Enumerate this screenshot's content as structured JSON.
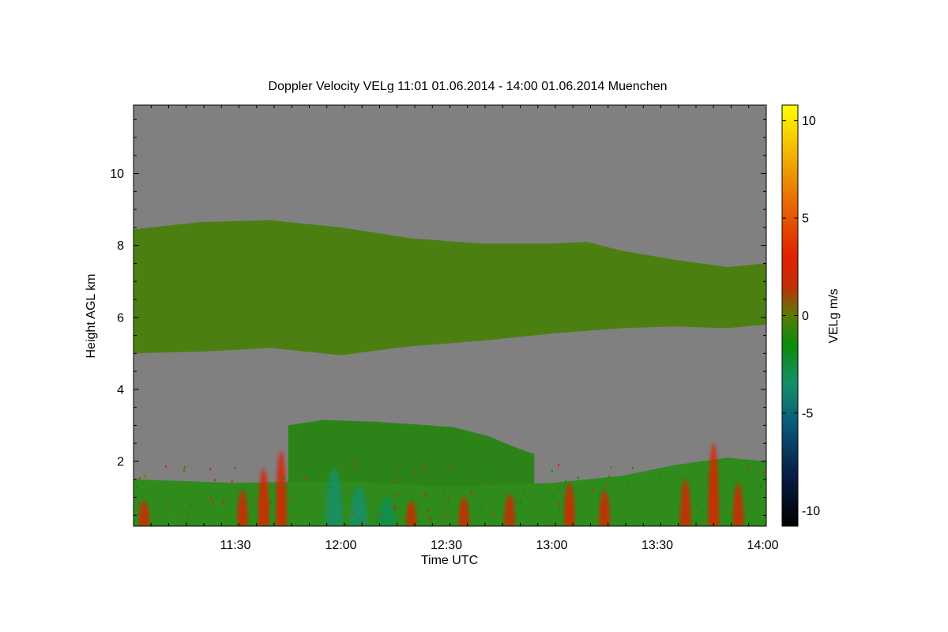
{
  "chart_data": {
    "type": "heatmap",
    "title": "Doppler Velocity VELg   11:01 01.06.2014 - 14:00 01.06.2014 Muenchen",
    "xlabel": "Time UTC",
    "ylabel": "Height AGL km",
    "colorbar_label": "VELg m/s",
    "x_ticks": [
      "11:30",
      "12:00",
      "12:30",
      "13:00",
      "13:30",
      "14:00"
    ],
    "x_tick_values_min": [
      690,
      720,
      750,
      780,
      810,
      840
    ],
    "xlim_min": [
      661,
      841
    ],
    "y_ticks": [
      2,
      4,
      6,
      8,
      10
    ],
    "ylim": [
      0.2,
      11.9
    ],
    "colorbar_ticks": [
      -10,
      -5,
      0,
      5,
      10
    ],
    "clim": [
      -10.8,
      10.8
    ],
    "background_color": "#808080",
    "colormap": [
      {
        "v": -10.8,
        "c": "#000000"
      },
      {
        "v": -8,
        "c": "#08204a"
      },
      {
        "v": -5.5,
        "c": "#0a5a78"
      },
      {
        "v": -3.5,
        "c": "#13906a"
      },
      {
        "v": -1.5,
        "c": "#0a8c0a"
      },
      {
        "v": 0,
        "c": "#5a7a08"
      },
      {
        "v": 1.5,
        "c": "#c03008"
      },
      {
        "v": 3,
        "c": "#e02000"
      },
      {
        "v": 6,
        "c": "#e87000"
      },
      {
        "v": 9,
        "c": "#f6c800"
      },
      {
        "v": 10.8,
        "c": "#ffff00"
      }
    ],
    "regions": [
      {
        "name": "upper cloud layer",
        "velocity": -1,
        "color": "#4c7f12",
        "top": [
          [
            661,
            8.45
          ],
          [
            680,
            8.65
          ],
          [
            700,
            8.7
          ],
          [
            720,
            8.5
          ],
          [
            740,
            8.2
          ],
          [
            760,
            8.05
          ],
          [
            780,
            8.05
          ],
          [
            790,
            8.1
          ],
          [
            800,
            7.85
          ],
          [
            815,
            7.6
          ],
          [
            830,
            7.4
          ],
          [
            841,
            7.5
          ]
        ],
        "bottom": [
          [
            661,
            5.0
          ],
          [
            680,
            5.05
          ],
          [
            700,
            5.15
          ],
          [
            720,
            4.95
          ],
          [
            740,
            5.2
          ],
          [
            760,
            5.35
          ],
          [
            780,
            5.55
          ],
          [
            800,
            5.7
          ],
          [
            815,
            5.75
          ],
          [
            830,
            5.7
          ],
          [
            841,
            5.8
          ]
        ]
      },
      {
        "name": "mid cloud",
        "velocity": -1.5,
        "color": "#2c8418",
        "top": [
          [
            705,
            3.0
          ],
          [
            715,
            3.15
          ],
          [
            730,
            3.1
          ],
          [
            745,
            3.0
          ],
          [
            752,
            2.95
          ],
          [
            758,
            2.8
          ],
          [
            762,
            2.7
          ],
          [
            768,
            2.45
          ],
          [
            775,
            2.2
          ]
        ],
        "bottom": [
          [
            705,
            0.2
          ],
          [
            775,
            0.2
          ]
        ]
      },
      {
        "name": "boundary layer",
        "velocity": -1.5,
        "color": "#2f8b1c",
        "top": [
          [
            661,
            1.5
          ],
          [
            690,
            1.4
          ],
          [
            720,
            1.45
          ],
          [
            750,
            1.3
          ],
          [
            780,
            1.4
          ],
          [
            800,
            1.6
          ],
          [
            815,
            1.9
          ],
          [
            830,
            2.1
          ],
          [
            841,
            2.0
          ]
        ],
        "bottom": [
          [
            661,
            0.2
          ],
          [
            841,
            0.2
          ]
        ]
      }
    ],
    "updraft_patches": [
      {
        "t": 664,
        "h": 0.9,
        "velocity": 2.5
      },
      {
        "t": 692,
        "h": 1.2,
        "velocity": 2.5
      },
      {
        "t": 698,
        "h": 1.8,
        "velocity": 3.0
      },
      {
        "t": 703,
        "h": 2.3,
        "velocity": 3.0
      },
      {
        "t": 740,
        "h": 0.9,
        "velocity": 2.0
      },
      {
        "t": 755,
        "h": 1.0,
        "velocity": 2.5
      },
      {
        "t": 768,
        "h": 1.1,
        "velocity": 2.0
      },
      {
        "t": 785,
        "h": 1.4,
        "velocity": 2.5
      },
      {
        "t": 795,
        "h": 1.2,
        "velocity": 2.5
      },
      {
        "t": 818,
        "h": 1.5,
        "velocity": 2.5
      },
      {
        "t": 826,
        "h": 2.5,
        "velocity": 3.0
      },
      {
        "t": 833,
        "h": 1.4,
        "velocity": 2.5
      }
    ],
    "downdraft_patches": [
      {
        "t": 718,
        "h": 1.8,
        "velocity": -3.5
      },
      {
        "t": 725,
        "h": 1.3,
        "velocity": -3.5
      },
      {
        "t": 733,
        "h": 1.0,
        "velocity": -3.0
      }
    ]
  }
}
